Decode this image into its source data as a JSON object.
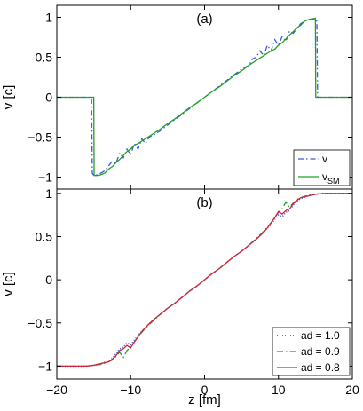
{
  "chart_data": [
    {
      "type": "line",
      "panel_label": "(a)",
      "xlabel": "",
      "ylabel": "v [c]",
      "xlim": [
        -20,
        20
      ],
      "ylim": [
        -1.15,
        1.15
      ],
      "xticks": [
        -20,
        -10,
        0,
        10,
        20
      ],
      "show_x_tick_labels": false,
      "yticks": [
        -1,
        -0.5,
        0,
        0.5,
        1
      ],
      "ytick_labels": [
        "−1",
        "−0.5",
        "0",
        "0.5",
        "1"
      ],
      "grid": false,
      "legend_position": "bottom-right",
      "series": [
        {
          "name": "v",
          "legend_sub": "",
          "color": "#3b5bdb",
          "dash": "6,3,1.5,3",
          "x": [
            -20,
            -15.3,
            -15.2,
            -15.0,
            -14.5,
            -14.0,
            -13.5,
            -13.0,
            -12.5,
            -12.0,
            -11.5,
            -11.0,
            -10.5,
            -10.0,
            -9.5,
            -9.0,
            -8.5,
            -8.0,
            -7.5,
            -7.0,
            -6.0,
            -5.0,
            -4.0,
            -3.0,
            -2.0,
            -1.0,
            0.0,
            1.0,
            2.0,
            3.0,
            4.0,
            5.0,
            6.0,
            6.5,
            7.0,
            7.5,
            8.0,
            8.5,
            9.0,
            9.5,
            10.0,
            10.5,
            11.0,
            11.5,
            12.0,
            12.5,
            13.0,
            13.5,
            14.0,
            14.5,
            15.0,
            15.2,
            15.3,
            20
          ],
          "y": [
            0,
            0,
            -0.95,
            -0.98,
            -0.97,
            -0.95,
            -0.92,
            -0.86,
            -0.8,
            -0.83,
            -0.7,
            -0.76,
            -0.65,
            -0.72,
            -0.58,
            -0.65,
            -0.52,
            -0.58,
            -0.5,
            -0.48,
            -0.42,
            -0.35,
            -0.28,
            -0.21,
            -0.14,
            -0.07,
            0.0,
            0.07,
            0.14,
            0.21,
            0.28,
            0.35,
            0.4,
            0.48,
            0.5,
            0.58,
            0.52,
            0.65,
            0.58,
            0.72,
            0.65,
            0.76,
            0.7,
            0.83,
            0.8,
            0.86,
            0.92,
            0.95,
            0.97,
            0.98,
            0.98,
            0.95,
            0,
            0
          ]
        },
        {
          "name": "v",
          "legend_sub": "SM",
          "color": "#22a022",
          "dash": "",
          "x": [
            -20,
            -15.0,
            -14.95,
            -14.5,
            -14.0,
            -13.5,
            -13.0,
            -12.5,
            -12.0,
            -11.5,
            -11.0,
            -10.5,
            -10.0,
            -9.5,
            -9.0,
            -8.5,
            -8.0,
            -7.0,
            -6.0,
            -5.0,
            -4.0,
            -3.0,
            -2.0,
            -1.0,
            0.0,
            1.0,
            2.0,
            3.0,
            4.0,
            5.0,
            6.0,
            7.0,
            8.0,
            8.5,
            9.0,
            9.5,
            10.0,
            10.5,
            11.0,
            11.5,
            12.0,
            12.5,
            13.0,
            13.5,
            14.0,
            14.5,
            15.0,
            15.05,
            20
          ],
          "y": [
            0,
            0,
            -0.98,
            -0.98,
            -0.97,
            -0.95,
            -0.9,
            -0.87,
            -0.82,
            -0.78,
            -0.73,
            -0.68,
            -0.65,
            -0.6,
            -0.58,
            -0.55,
            -0.52,
            -0.46,
            -0.4,
            -0.33,
            -0.27,
            -0.2,
            -0.13,
            -0.07,
            0.0,
            0.07,
            0.13,
            0.2,
            0.27,
            0.33,
            0.4,
            0.46,
            0.52,
            0.55,
            0.58,
            0.6,
            0.65,
            0.68,
            0.73,
            0.78,
            0.82,
            0.87,
            0.9,
            0.95,
            0.97,
            0.98,
            0.99,
            0,
            0
          ]
        }
      ]
    },
    {
      "type": "line",
      "panel_label": "(b)",
      "xlabel": "z [fm]",
      "ylabel": "v [c]",
      "xlim": [
        -20,
        20
      ],
      "ylim": [
        -1.15,
        1.05
      ],
      "xticks": [
        -20,
        -10,
        0,
        10,
        20
      ],
      "xtick_labels": [
        "−20",
        "−10",
        "0",
        "10",
        "20"
      ],
      "show_x_tick_labels": true,
      "yticks": [
        -1,
        -0.5,
        0,
        0.5,
        1
      ],
      "ytick_labels": [
        "−1",
        "−0.5",
        "0",
        "0.5",
        "1"
      ],
      "grid": false,
      "legend_position": "bottom-right",
      "series": [
        {
          "name": "ad = 1.0",
          "legend_sub": "",
          "color": "#3b5bdb",
          "dash": "1,2",
          "x": [
            -20,
            -16,
            -15,
            -14,
            -13,
            -12.5,
            -12,
            -11.5,
            -11,
            -10.5,
            -10,
            -9.5,
            -9,
            -8.5,
            -8,
            -7,
            -6,
            -5,
            -4,
            -3,
            -2,
            -1,
            0,
            1,
            2,
            3,
            4,
            5,
            6,
            7,
            8,
            8.5,
            9,
            9.5,
            10,
            10.5,
            11,
            11.5,
            12,
            12.5,
            13,
            14,
            15,
            16,
            20
          ],
          "y": [
            -1.0,
            -1.0,
            -0.99,
            -0.97,
            -0.94,
            -0.91,
            -0.86,
            -0.8,
            -0.78,
            -0.73,
            -0.75,
            -0.7,
            -0.64,
            -0.6,
            -0.55,
            -0.47,
            -0.4,
            -0.33,
            -0.27,
            -0.2,
            -0.13,
            -0.07,
            0.0,
            0.07,
            0.13,
            0.2,
            0.27,
            0.33,
            0.4,
            0.47,
            0.55,
            0.6,
            0.64,
            0.7,
            0.75,
            0.73,
            0.78,
            0.8,
            0.86,
            0.91,
            0.94,
            0.97,
            0.99,
            1.0,
            1.0
          ]
        },
        {
          "name": "ad = 0.9",
          "legend_sub": "",
          "color": "#22a022",
          "dash": "7,3,1.5,3",
          "x": [
            -20,
            -16,
            -15,
            -14,
            -13,
            -12.5,
            -12,
            -11.5,
            -11,
            -10.5,
            -10,
            -9.5,
            -9,
            -8.5,
            -8,
            -7,
            -6,
            -5,
            -4,
            -3,
            -2,
            -1,
            0,
            1,
            2,
            3,
            4,
            5,
            6,
            7,
            8,
            8.5,
            9,
            9.5,
            10,
            10.5,
            11,
            11.5,
            12,
            12.5,
            13,
            14,
            15,
            16,
            20
          ],
          "y": [
            -1.0,
            -1.0,
            -0.99,
            -0.98,
            -0.95,
            -0.93,
            -0.89,
            -0.84,
            -0.9,
            -0.82,
            -0.78,
            -0.72,
            -0.66,
            -0.61,
            -0.56,
            -0.48,
            -0.4,
            -0.33,
            -0.27,
            -0.2,
            -0.13,
            -0.07,
            0.0,
            0.07,
            0.13,
            0.2,
            0.27,
            0.33,
            0.4,
            0.48,
            0.56,
            0.61,
            0.66,
            0.72,
            0.78,
            0.82,
            0.9,
            0.84,
            0.89,
            0.93,
            0.95,
            0.98,
            0.99,
            1.0,
            1.0
          ]
        },
        {
          "name": "ad = 0.8",
          "legend_sub": "",
          "color": "#d4213d",
          "dash": "",
          "x": [
            -20,
            -16,
            -15,
            -14,
            -13,
            -12.5,
            -12,
            -11.5,
            -11,
            -10.5,
            -10,
            -9.5,
            -9,
            -8.5,
            -8,
            -7,
            -6,
            -5,
            -4,
            -3,
            -2,
            -1,
            0,
            1,
            2,
            3,
            4,
            5,
            6,
            7,
            8,
            8.5,
            9,
            9.5,
            10,
            10.5,
            11,
            11.5,
            12,
            12.5,
            13,
            14,
            15,
            16,
            20
          ],
          "y": [
            -1.0,
            -1.0,
            -0.99,
            -0.97,
            -0.95,
            -0.92,
            -0.88,
            -0.82,
            -0.8,
            -0.76,
            -0.79,
            -0.72,
            -0.66,
            -0.6,
            -0.55,
            -0.47,
            -0.4,
            -0.33,
            -0.27,
            -0.2,
            -0.13,
            -0.07,
            0.0,
            0.07,
            0.13,
            0.2,
            0.27,
            0.33,
            0.4,
            0.47,
            0.55,
            0.6,
            0.66,
            0.72,
            0.79,
            0.76,
            0.8,
            0.82,
            0.88,
            0.92,
            0.95,
            0.97,
            0.99,
            1.0,
            1.0
          ]
        }
      ]
    }
  ]
}
